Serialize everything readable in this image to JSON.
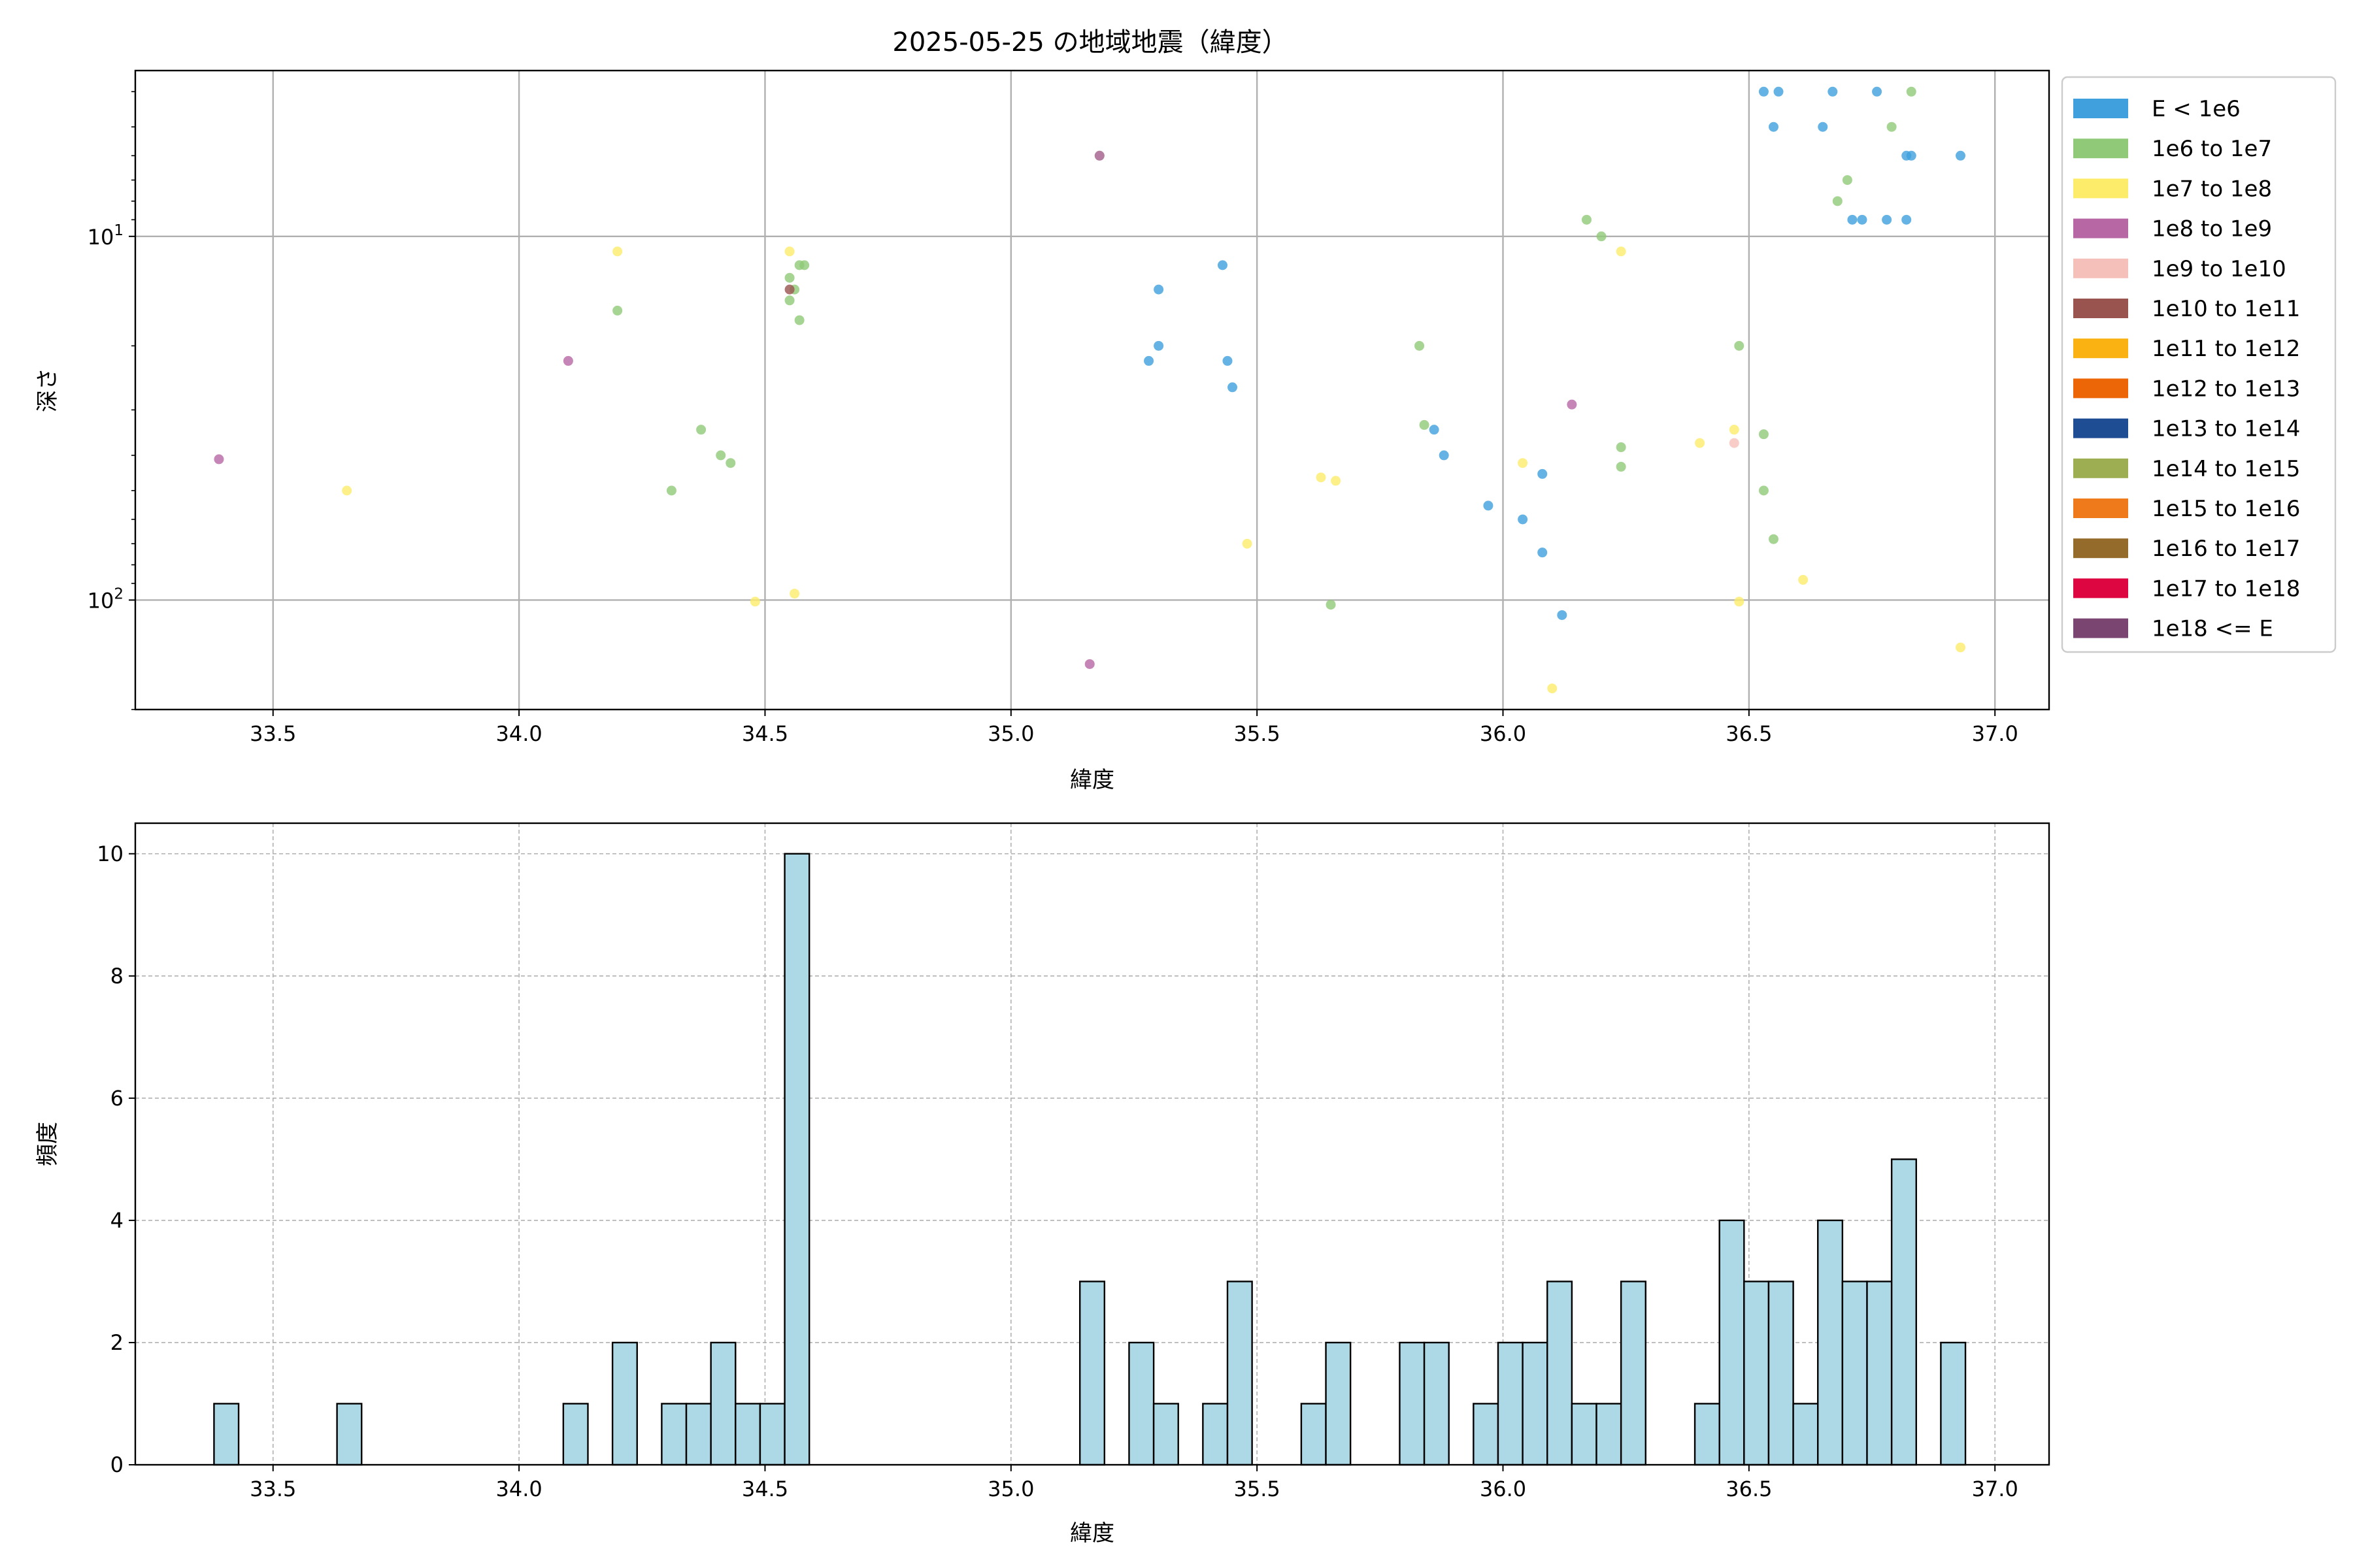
{
  "chart_data": [
    {
      "type": "scatter",
      "title": "2025-05-25 の地域地震（緯度）",
      "xlabel": "緯度",
      "ylabel": "深さ",
      "xlim": [
        33.22,
        37.11
      ],
      "ylim": [
        200,
        3.5
      ],
      "yscale": "log",
      "y_inverted": true,
      "grid": true,
      "legend_position": "outside-right",
      "xticks": [
        "33.5",
        "34.0",
        "34.5",
        "35.0",
        "35.5",
        "36.0",
        "36.5",
        "37.0"
      ],
      "xtick_values": [
        33.5,
        34.0,
        34.5,
        35.0,
        35.5,
        36.0,
        36.5,
        37.0
      ],
      "yticks": [
        {
          "value": 10,
          "base": "10",
          "exp": "1"
        },
        {
          "value": 100,
          "base": "10",
          "exp": "2"
        }
      ],
      "legend": [
        {
          "label": "E < 1e6",
          "color": "#3fa0dd"
        },
        {
          "label": "1e6 to 1e7",
          "color": "#90c978"
        },
        {
          "label": "1e7 to 1e8",
          "color": "#fdec6a"
        },
        {
          "label": "1e8 to 1e9",
          "color": "#b867a5"
        },
        {
          "label": "1e9 to 1e10",
          "color": "#f6c0ba"
        },
        {
          "label": "1e10 to 1e11",
          "color": "#9a5450"
        },
        {
          "label": "1e11 to 1e12",
          "color": "#f9b211"
        },
        {
          "label": "1e12 to 1e13",
          "color": "#ec6608"
        },
        {
          "label": "1e13 to 1e14",
          "color": "#1f4d93"
        },
        {
          "label": "1e14 to 1e15",
          "color": "#9dae52"
        },
        {
          "label": "1e15 to 1e16",
          "color": "#ee7a1c"
        },
        {
          "label": "1e16 to 1e17",
          "color": "#946b2a"
        },
        {
          "label": "1e17 to 1e18",
          "color": "#dd0640"
        },
        {
          "label": "1e18 <= E",
          "color": "#7a4571"
        }
      ],
      "series": [
        {
          "class": 0,
          "points": [
            [
              36.53,
              4.0
            ],
            [
              36.56,
              4.0
            ],
            [
              36.67,
              4.0
            ],
            [
              36.76,
              4.0
            ],
            [
              36.55,
              5.0
            ],
            [
              36.65,
              5.0
            ],
            [
              36.82,
              6.0
            ],
            [
              36.83,
              6.0
            ],
            [
              36.93,
              6.0
            ],
            [
              36.71,
              9.0
            ],
            [
              36.73,
              9.0
            ],
            [
              36.78,
              9.0
            ],
            [
              36.82,
              9.0
            ],
            [
              35.43,
              12.0
            ],
            [
              35.3,
              14.0
            ],
            [
              35.3,
              20.0
            ],
            [
              35.28,
              22.0
            ],
            [
              35.44,
              22.0
            ],
            [
              35.45,
              26.0
            ],
            [
              35.86,
              34.0
            ],
            [
              35.88,
              40.0
            ],
            [
              36.08,
              45.0
            ],
            [
              35.97,
              55.0
            ],
            [
              36.04,
              60.0
            ],
            [
              36.08,
              74.0
            ],
            [
              36.12,
              110.0
            ]
          ]
        },
        {
          "class": 1,
          "points": [
            [
              36.83,
              4.0
            ],
            [
              36.79,
              5.0
            ],
            [
              35.18,
              6.0
            ],
            [
              36.7,
              7.0
            ],
            [
              36.68,
              8.0
            ],
            [
              36.17,
              9.0
            ],
            [
              36.2,
              10.0
            ],
            [
              34.55,
              13.0
            ],
            [
              34.57,
              12.0
            ],
            [
              34.58,
              12.0
            ],
            [
              34.56,
              14.0
            ],
            [
              34.55,
              15.0
            ],
            [
              34.2,
              16.0
            ],
            [
              34.57,
              17.0
            ],
            [
              35.83,
              20.0
            ],
            [
              36.48,
              20.0
            ],
            [
              34.37,
              34.0
            ],
            [
              35.84,
              33.0
            ],
            [
              36.53,
              35.0
            ],
            [
              36.24,
              38.0
            ],
            [
              34.41,
              40.0
            ],
            [
              34.43,
              42.0
            ],
            [
              36.24,
              43.0
            ],
            [
              34.31,
              50.0
            ],
            [
              36.53,
              50.0
            ],
            [
              36.55,
              68.0
            ],
            [
              35.65,
              103.0
            ]
          ]
        },
        {
          "class": 2,
          "points": [
            [
              34.2,
              11.0
            ],
            [
              34.55,
              11.0
            ],
            [
              36.24,
              11.0
            ],
            [
              36.47,
              34.0
            ],
            [
              36.4,
              37.0
            ],
            [
              36.04,
              42.0
            ],
            [
              35.63,
              46.0
            ],
            [
              35.66,
              47.0
            ],
            [
              33.65,
              50.0
            ],
            [
              35.48,
              70.0
            ],
            [
              36.61,
              88.0
            ],
            [
              34.56,
              96.0
            ],
            [
              34.48,
              101.0
            ],
            [
              36.48,
              101.0
            ],
            [
              36.93,
              135.0
            ],
            [
              36.1,
              175.0
            ]
          ]
        },
        {
          "class": 3,
          "points": [
            [
              33.39,
              41.0
            ],
            [
              34.1,
              22.0
            ],
            [
              35.18,
              6.0
            ],
            [
              36.14,
              29.0
            ],
            [
              35.16,
              150.0
            ]
          ]
        },
        {
          "class": 4,
          "points": [
            [
              36.47,
              37.0
            ]
          ]
        },
        {
          "class": 5,
          "points": [
            [
              34.55,
              14.0
            ]
          ]
        }
      ]
    },
    {
      "type": "bar",
      "subtype": "histogram",
      "xlabel": "緯度",
      "ylabel": "頻度",
      "xlim": [
        33.22,
        37.11
      ],
      "ylim": [
        0,
        10.5
      ],
      "grid": true,
      "bin_width": 0.05,
      "xticks": [
        "33.5",
        "34.0",
        "34.5",
        "35.0",
        "35.5",
        "36.0",
        "36.5",
        "37.0"
      ],
      "xtick_values": [
        33.5,
        34.0,
        34.5,
        35.0,
        35.5,
        36.0,
        36.5,
        37.0
      ],
      "yticks": [
        "0",
        "2",
        "4",
        "6",
        "8",
        "10"
      ],
      "ytick_values": [
        0,
        2,
        4,
        6,
        8,
        10
      ],
      "bar_color": "#add8e6",
      "edge_color": "#000000",
      "bins": [
        {
          "start": 33.38,
          "count": 1
        },
        {
          "start": 33.63,
          "count": 1
        },
        {
          "start": 34.09,
          "count": 1
        },
        {
          "start": 34.19,
          "count": 2
        },
        {
          "start": 34.29,
          "count": 1
        },
        {
          "start": 34.34,
          "count": 1
        },
        {
          "start": 34.39,
          "count": 2
        },
        {
          "start": 34.44,
          "count": 1
        },
        {
          "start": 34.49,
          "count": 1
        },
        {
          "start": 34.54,
          "count": 10
        },
        {
          "start": 35.14,
          "count": 3
        },
        {
          "start": 35.24,
          "count": 2
        },
        {
          "start": 35.29,
          "count": 1
        },
        {
          "start": 35.39,
          "count": 1
        },
        {
          "start": 35.44,
          "count": 3
        },
        {
          "start": 35.59,
          "count": 1
        },
        {
          "start": 35.64,
          "count": 2
        },
        {
          "start": 35.79,
          "count": 2
        },
        {
          "start": 35.84,
          "count": 2
        },
        {
          "start": 35.94,
          "count": 1
        },
        {
          "start": 35.99,
          "count": 2
        },
        {
          "start": 36.04,
          "count": 2
        },
        {
          "start": 36.09,
          "count": 3
        },
        {
          "start": 36.14,
          "count": 1
        },
        {
          "start": 36.19,
          "count": 1
        },
        {
          "start": 36.24,
          "count": 3
        },
        {
          "start": 36.39,
          "count": 1
        },
        {
          "start": 36.44,
          "count": 4
        },
        {
          "start": 36.49,
          "count": 3
        },
        {
          "start": 36.54,
          "count": 3
        },
        {
          "start": 36.59,
          "count": 1
        },
        {
          "start": 36.64,
          "count": 4
        },
        {
          "start": 36.69,
          "count": 3
        },
        {
          "start": 36.74,
          "count": 3
        },
        {
          "start": 36.79,
          "count": 5
        },
        {
          "start": 36.89,
          "count": 2
        }
      ]
    }
  ]
}
